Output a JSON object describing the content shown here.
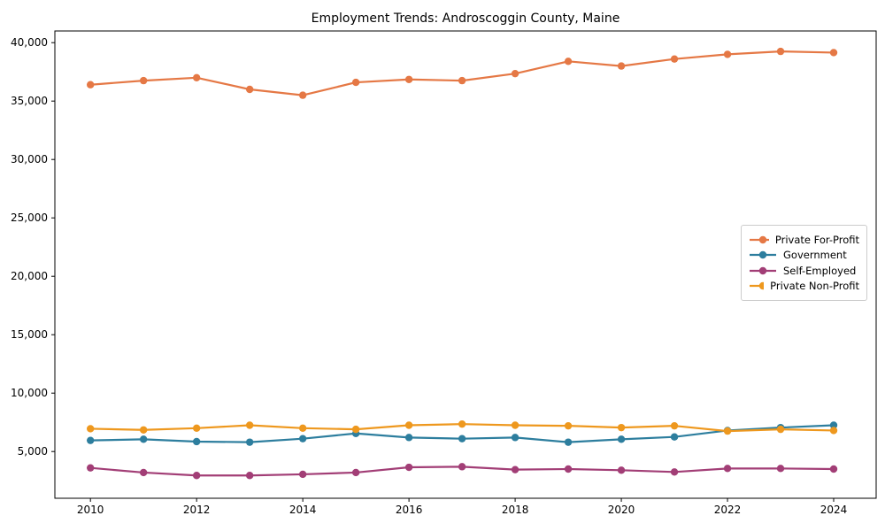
{
  "chart_data": {
    "type": "line",
    "title": "Employment Trends: Androscoggin County, Maine",
    "x": [
      2010,
      2011,
      2012,
      2013,
      2014,
      2015,
      2016,
      2017,
      2018,
      2019,
      2020,
      2021,
      2022,
      2023,
      2024
    ],
    "series": [
      {
        "name": "Private For-Profit",
        "color": "#E57845",
        "values": [
          36400,
          36750,
          37000,
          36000,
          35500,
          36600,
          36850,
          36750,
          37350,
          38400,
          38000,
          38600,
          39000,
          39250,
          39150
        ]
      },
      {
        "name": "Government",
        "color": "#2D7E9E",
        "values": [
          5950,
          6050,
          5850,
          5800,
          6100,
          6550,
          6200,
          6100,
          6200,
          5800,
          6050,
          6250,
          6800,
          7050,
          7250
        ]
      },
      {
        "name": "Self-Employed",
        "color": "#A23E76",
        "values": [
          3600,
          3200,
          2950,
          2950,
          3050,
          3200,
          3650,
          3700,
          3450,
          3500,
          3400,
          3250,
          3550,
          3550,
          3500
        ]
      },
      {
        "name": "Private Non-Profit",
        "color": "#EE981E",
        "values": [
          6950,
          6850,
          7000,
          7250,
          7000,
          6900,
          7250,
          7350,
          7250,
          7200,
          7050,
          7200,
          6750,
          6900,
          6800
        ]
      }
    ],
    "x_axis": {
      "tick_values": [
        2010,
        2012,
        2014,
        2016,
        2018,
        2020,
        2022,
        2024
      ],
      "tick_labels": [
        "2010",
        "2012",
        "2014",
        "2016",
        "2018",
        "2020",
        "2022",
        "2024"
      ]
    },
    "y_axis": {
      "tick_values": [
        5000,
        10000,
        15000,
        20000,
        25000,
        30000,
        35000,
        40000
      ],
      "tick_labels": [
        "5,000",
        "10,000",
        "15,000",
        "20,000",
        "25,000",
        "30,000",
        "35,000",
        "40,000"
      ]
    },
    "xlim": [
      2009.33,
      2024.8
    ],
    "ylim": [
      1000,
      41000
    ],
    "grid": false,
    "legend": {
      "position": "center right",
      "border_color": "#cccccc"
    }
  }
}
